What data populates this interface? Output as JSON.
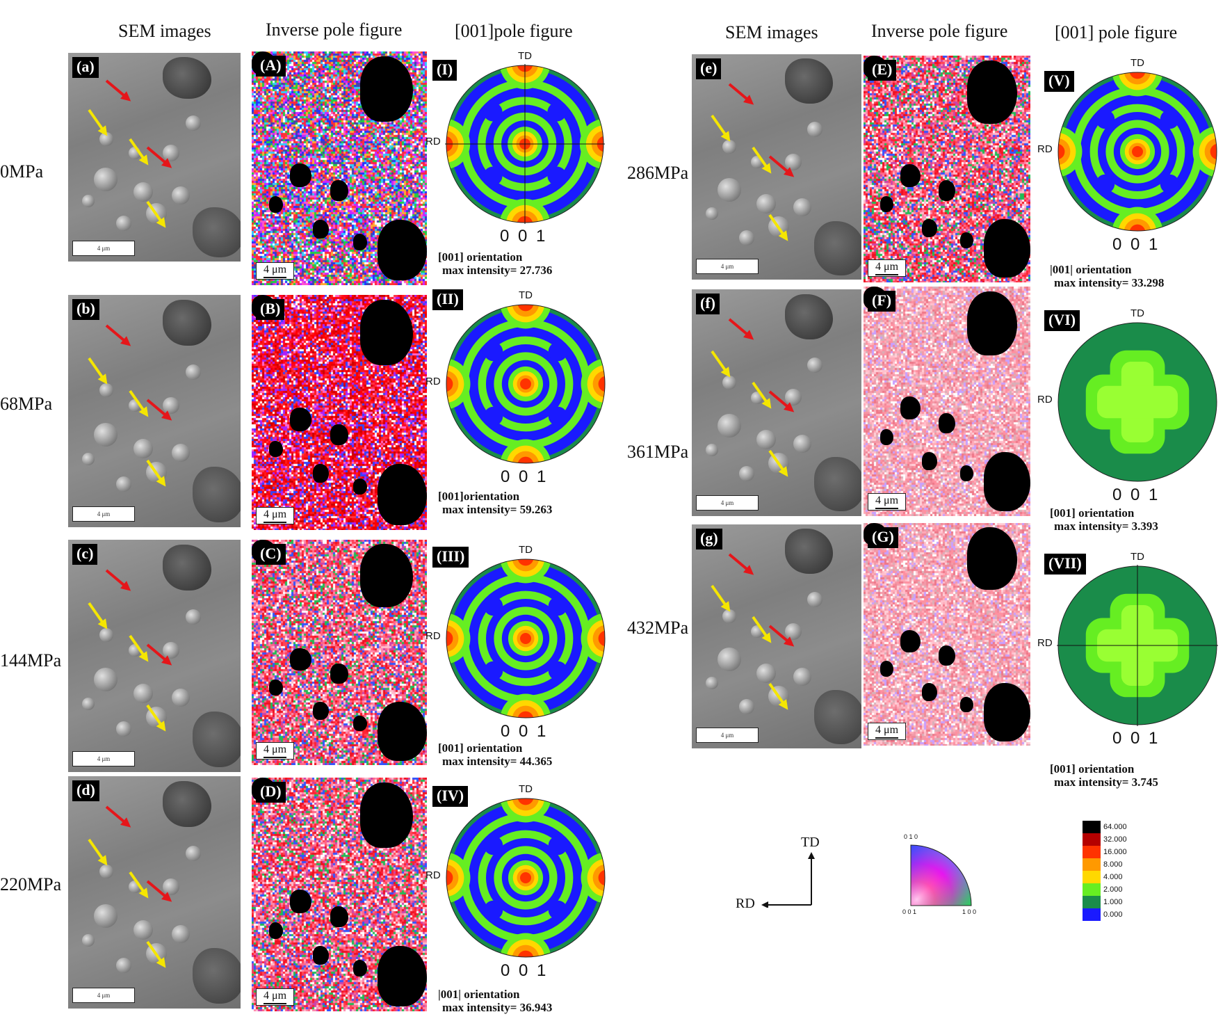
{
  "headers": {
    "left": {
      "sem": "SEM images",
      "ipf": "Inverse pole figure",
      "pf": "[001]pole figure"
    },
    "right": {
      "sem": "SEM images",
      "ipf": "Inverse pole figure",
      "pf": "[001] pole figure"
    }
  },
  "rows": [
    {
      "stress": "0MPa",
      "sem_tag": "(a)",
      "ipf_tag": "(A)",
      "pf_tag": "(I)",
      "ipf_scale": "4 μm",
      "cap1": "[001] orientation",
      "cap2": "max intensity= 27.736",
      "pf_type": "sym",
      "ipf_color": "mixed"
    },
    {
      "stress": "68MPa",
      "sem_tag": "(b)",
      "ipf_tag": "(B)",
      "pf_tag": "(II)",
      "ipf_scale": "4 μm",
      "cap1": "[001]orientation",
      "cap2": "max intensity= 59.263",
      "pf_type": "sym",
      "ipf_color": "red"
    },
    {
      "stress": "144MPa",
      "sem_tag": "(c)",
      "ipf_tag": "(C)",
      "pf_tag": "(III)",
      "ipf_scale": "4 μm",
      "cap1": "[001] orientation",
      "cap2": "max intensity= 44.365",
      "pf_type": "sym",
      "ipf_color": "redpink"
    },
    {
      "stress": "220MPa",
      "sem_tag": "(d)",
      "ipf_tag": "(D)",
      "pf_tag": "(IV)",
      "ipf_scale": "4 μm",
      "cap1": "|001| orientation",
      "cap2": "max intensity= 36.943",
      "pf_type": "sym",
      "ipf_color": "redpink"
    },
    {
      "stress": "286MPa",
      "sem_tag": "(e)",
      "ipf_tag": "(E)",
      "pf_tag": "(V)",
      "ipf_scale": "4 μm",
      "cap1": "|001| orientation",
      "cap2": "max intensity= 33.298",
      "pf_type": "sym",
      "ipf_color": "redpink"
    },
    {
      "stress": "361MPa",
      "sem_tag": "(f)",
      "ipf_tag": "(F)",
      "pf_tag": "(VI)",
      "ipf_scale": "4 μm",
      "cap1": "[001] orientation",
      "cap2": "max intensity= 3.393",
      "pf_type": "weak",
      "ipf_color": "pink"
    },
    {
      "stress": "432MPa",
      "sem_tag": "(g)",
      "ipf_tag": "(G)",
      "pf_tag": "(VII)",
      "ipf_scale": "4 μm",
      "cap1": "[001] orientation",
      "cap2": "max intensity= 3.745",
      "pf_type": "weak",
      "ipf_color": "pink"
    }
  ],
  "pole_labels": {
    "td": "TD",
    "rd": "RD",
    "index": "0 0 1"
  },
  "sem_scale": "4 μm",
  "axes_legend": {
    "td": "TD",
    "rd": "RD"
  },
  "ipf_key": {
    "top": "0 1 0",
    "left": "0 0 1",
    "right": "1 0 0"
  },
  "intensity_scale": {
    "values": [
      "64.000",
      "32.000",
      "16.000",
      "8.000",
      "4.000",
      "2.000",
      "1.000",
      "0.000"
    ],
    "colors": [
      "#000000",
      "#b40000",
      "#ff3300",
      "#ff9900",
      "#ffd800",
      "#66ee22",
      "#1a8c4a",
      "#1a1aff"
    ]
  }
}
